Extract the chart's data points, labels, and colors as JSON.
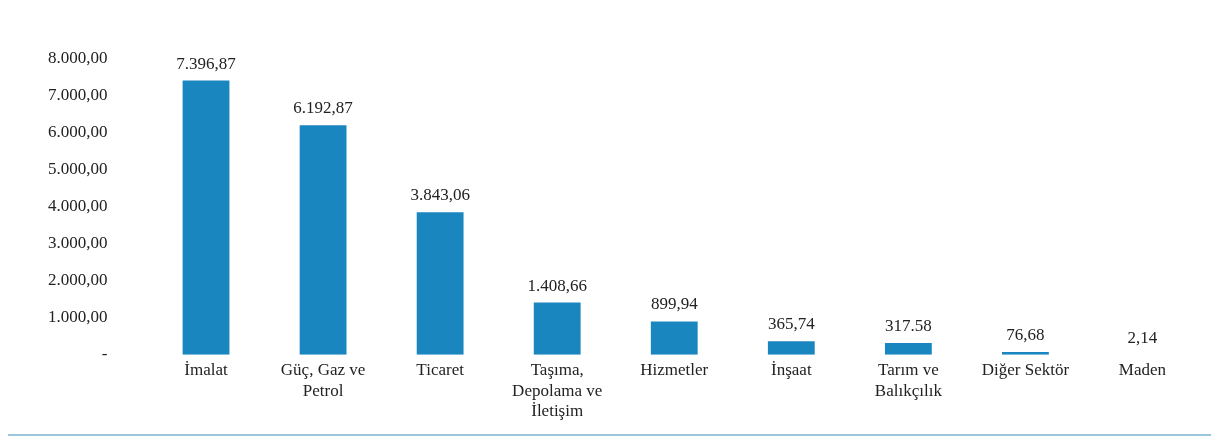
{
  "chart_data": {
    "type": "bar",
    "categories": [
      "İmalat",
      "Güç, Gaz ve Petrol",
      "Ticaret",
      "Taşıma, Depolama ve İletişim",
      "Hizmetler",
      "İnşaat",
      "Tarım ve Balıkçılık",
      "Diğer Sektör",
      "Maden"
    ],
    "values": [
      7396.87,
      6192.87,
      3843.06,
      1408.66,
      899.94,
      365.74,
      317.58,
      76.68,
      2.14
    ],
    "value_labels": [
      "7.396,87",
      "6.192,87",
      "3.843,06",
      "1.408,66",
      "899,94",
      "365,74",
      "317.58",
      "76,68",
      "2,14"
    ],
    "color": "#1a86c0",
    "ylim": [
      0,
      8000
    ],
    "yticks": [
      {
        "value": 0,
        "label": "-"
      },
      {
        "value": 1000,
        "label": "1.000,00"
      },
      {
        "value": 2000,
        "label": "2.000,00"
      },
      {
        "value": 3000,
        "label": "3.000,00"
      },
      {
        "value": 4000,
        "label": "4.000,00"
      },
      {
        "value": 5000,
        "label": "5.000,00"
      },
      {
        "value": 6000,
        "label": "6.000,00"
      },
      {
        "value": 7000,
        "label": "7.000,00"
      },
      {
        "value": 8000,
        "label": "8.000,00"
      }
    ],
    "grid": false,
    "legend": false
  }
}
